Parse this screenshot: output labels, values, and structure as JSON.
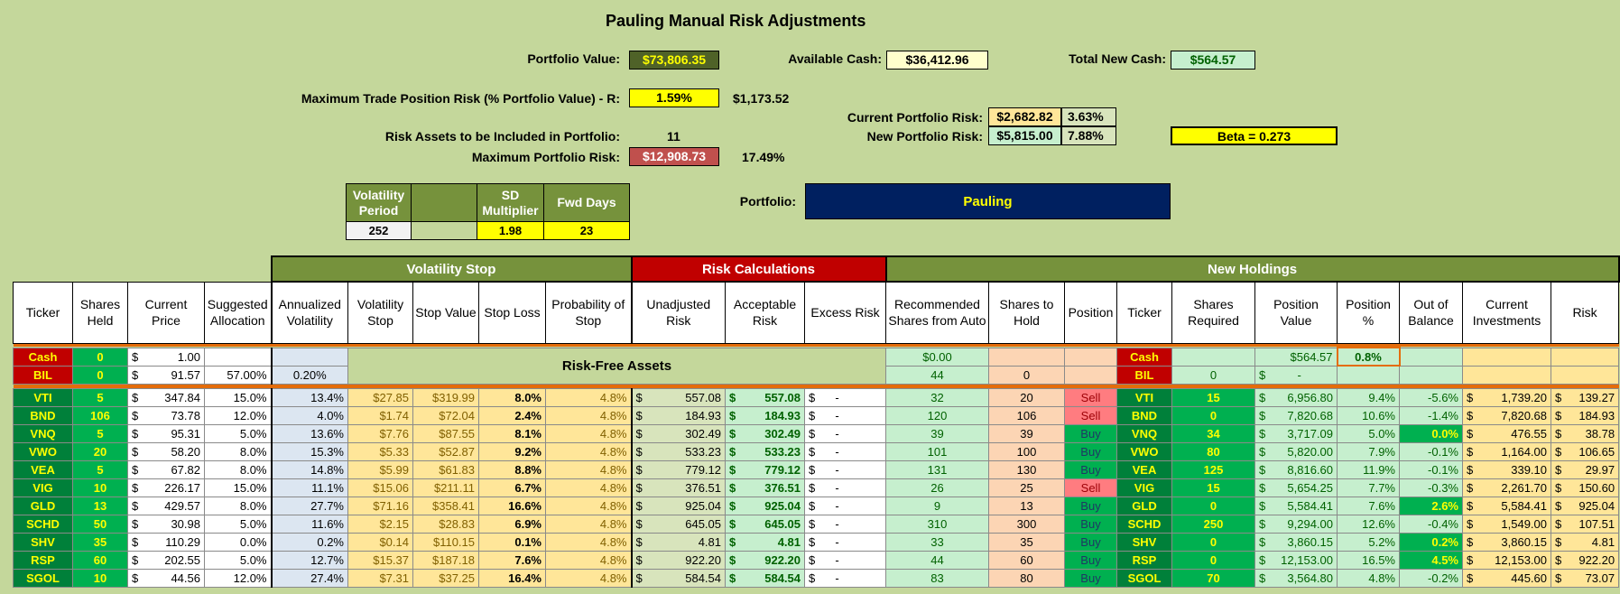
{
  "title": "Pauling Manual Risk Adjustments",
  "summary": {
    "portfolio_value_label": "Portfolio Value:",
    "portfolio_value": "$73,806.35",
    "available_cash_label": "Available Cash:",
    "available_cash": "$36,412.96",
    "total_new_cash_label": "Total New Cash:",
    "total_new_cash": "$564.57",
    "max_trade_risk_label": "Maximum Trade Position Risk (% Portfolio Value) - R:",
    "max_trade_risk_pct": "1.59%",
    "max_trade_risk_amt": "$1,173.52",
    "current_risk_label": "Current Portfolio Risk:",
    "current_risk": "$2,682.82",
    "current_risk_pct": "3.63%",
    "new_risk_label": "New Portfolio Risk:",
    "new_risk": "$5,815.00",
    "new_risk_pct": "7.88%",
    "beta": "Beta = 0.273",
    "risk_assets_label": "Risk Assets to be Included in Portfolio:",
    "risk_assets": "11",
    "max_portfolio_risk_label": "Maximum Portfolio Risk:",
    "max_portfolio_risk": "$12,908.73",
    "max_portfolio_risk_pct": "17.49%",
    "portfolio_label": "Portfolio:",
    "portfolio_name": "Pauling"
  },
  "volatility": {
    "headers": [
      "Volatility Period",
      "",
      "SD Multiplier",
      "Fwd Days"
    ],
    "values": [
      "252",
      "",
      "1.98",
      "23"
    ]
  },
  "sections": {
    "volatility_stop": "Volatility Stop",
    "risk_calculations": "Risk Calculations",
    "new_holdings": "New Holdings"
  },
  "headers": [
    "Ticker",
    "Shares Held",
    "Current Price",
    "Suggested Allocation",
    "Annualized Volatility",
    "Volatility Stop",
    "Stop Value",
    "Stop Loss",
    "Probability of Stop",
    "Unadjusted Risk",
    "Acceptable Risk",
    "Excess Risk",
    "Recommended Shares from Auto",
    "Shares to Hold",
    "Position",
    "Ticker",
    "Shares Required",
    "Position Value",
    "Position %",
    "Out of Balance",
    "Current Investments",
    "Risk"
  ],
  "risk_free_label": "Risk-Free Assets",
  "cash_row": {
    "ticker": "Cash",
    "held": "0",
    "price": "1.00",
    "rec": "$0.00",
    "ticker2": "Cash",
    "posval": "$564.57",
    "pospct": "0.8%"
  },
  "bil_row": {
    "ticker": "BIL",
    "held": "0",
    "price": "91.57",
    "alloc": "57.00%",
    "vol": "0.20%",
    "rec": "44",
    "hold": "0",
    "ticker2": "BIL",
    "req": "0",
    "posval": "-"
  },
  "rows": [
    {
      "t": "VTI",
      "h": "5",
      "p": "347.84",
      "a": "15.0%",
      "v": "13.4%",
      "vs": "$27.85",
      "sv": "$319.99",
      "sl": "8.0%",
      "ps": "4.8%",
      "ur": "557.08",
      "ar": "557.08",
      "er": "-",
      "rec": "32",
      "hold": "20",
      "pos": "Sell",
      "req": "15",
      "pv": "6,956.80",
      "pp": "9.4%",
      "ob": "-5.6%",
      "ci": "1,739.20",
      "rk": "139.27"
    },
    {
      "t": "BND",
      "h": "106",
      "p": "73.78",
      "a": "12.0%",
      "v": "4.0%",
      "vs": "$1.74",
      "sv": "$72.04",
      "sl": "2.4%",
      "ps": "4.8%",
      "ur": "184.93",
      "ar": "184.93",
      "er": "-",
      "rec": "120",
      "hold": "106",
      "pos": "Sell",
      "req": "0",
      "pv": "7,820.68",
      "pp": "10.6%",
      "ob": "-1.4%",
      "ci": "7,820.68",
      "rk": "184.93"
    },
    {
      "t": "VNQ",
      "h": "5",
      "p": "95.31",
      "a": "5.0%",
      "v": "13.6%",
      "vs": "$7.76",
      "sv": "$87.55",
      "sl": "8.1%",
      "ps": "4.8%",
      "ur": "302.49",
      "ar": "302.49",
      "er": "-",
      "rec": "39",
      "hold": "39",
      "pos": "Buy",
      "req": "34",
      "pv": "3,717.09",
      "pp": "5.0%",
      "ob": "0.0%",
      "ci": "476.55",
      "rk": "38.78"
    },
    {
      "t": "VWO",
      "h": "20",
      "p": "58.20",
      "a": "8.0%",
      "v": "15.3%",
      "vs": "$5.33",
      "sv": "$52.87",
      "sl": "9.2%",
      "ps": "4.8%",
      "ur": "533.23",
      "ar": "533.23",
      "er": "-",
      "rec": "101",
      "hold": "100",
      "pos": "Buy",
      "req": "80",
      "pv": "5,820.00",
      "pp": "7.9%",
      "ob": "-0.1%",
      "ci": "1,164.00",
      "rk": "106.65"
    },
    {
      "t": "VEA",
      "h": "5",
      "p": "67.82",
      "a": "8.0%",
      "v": "14.8%",
      "vs": "$5.99",
      "sv": "$61.83",
      "sl": "8.8%",
      "ps": "4.8%",
      "ur": "779.12",
      "ar": "779.12",
      "er": "-",
      "rec": "131",
      "hold": "130",
      "pos": "Buy",
      "req": "125",
      "pv": "8,816.60",
      "pp": "11.9%",
      "ob": "-0.1%",
      "ci": "339.10",
      "rk": "29.97"
    },
    {
      "t": "VIG",
      "h": "10",
      "p": "226.17",
      "a": "15.0%",
      "v": "11.1%",
      "vs": "$15.06",
      "sv": "$211.11",
      "sl": "6.7%",
      "ps": "4.8%",
      "ur": "376.51",
      "ar": "376.51",
      "er": "-",
      "rec": "26",
      "hold": "25",
      "pos": "Sell",
      "req": "15",
      "pv": "5,654.25",
      "pp": "7.7%",
      "ob": "-0.3%",
      "ci": "2,261.70",
      "rk": "150.60"
    },
    {
      "t": "GLD",
      "h": "13",
      "p": "429.57",
      "a": "8.0%",
      "v": "27.7%",
      "vs": "$71.16",
      "sv": "$358.41",
      "sl": "16.6%",
      "ps": "4.8%",
      "ur": "925.04",
      "ar": "925.04",
      "er": "-",
      "rec": "9",
      "hold": "13",
      "pos": "Buy",
      "req": "0",
      "pv": "5,584.41",
      "pp": "7.6%",
      "ob": "2.6%",
      "ci": "5,584.41",
      "rk": "925.04"
    },
    {
      "t": "SCHD",
      "h": "50",
      "p": "30.98",
      "a": "5.0%",
      "v": "11.6%",
      "vs": "$2.15",
      "sv": "$28.83",
      "sl": "6.9%",
      "ps": "4.8%",
      "ur": "645.05",
      "ar": "645.05",
      "er": "-",
      "rec": "310",
      "hold": "300",
      "pos": "Buy",
      "req": "250",
      "pv": "9,294.00",
      "pp": "12.6%",
      "ob": "-0.4%",
      "ci": "1,549.00",
      "rk": "107.51"
    },
    {
      "t": "SHV",
      "h": "35",
      "p": "110.29",
      "a": "0.0%",
      "v": "0.2%",
      "vs": "$0.14",
      "sv": "$110.15",
      "sl": "0.1%",
      "ps": "4.8%",
      "ur": "4.81",
      "ar": "4.81",
      "er": "-",
      "rec": "33",
      "hold": "35",
      "pos": "Buy",
      "req": "0",
      "pv": "3,860.15",
      "pp": "5.2%",
      "ob": "0.2%",
      "ci": "3,860.15",
      "rk": "4.81"
    },
    {
      "t": "RSP",
      "h": "60",
      "p": "202.55",
      "a": "5.0%",
      "v": "12.7%",
      "vs": "$15.37",
      "sv": "$187.18",
      "sl": "7.6%",
      "ps": "4.8%",
      "ur": "922.20",
      "ar": "922.20",
      "er": "-",
      "rec": "44",
      "hold": "60",
      "pos": "Buy",
      "req": "0",
      "pv": "12,153.00",
      "pp": "16.5%",
      "ob": "4.5%",
      "ci": "12,153.00",
      "rk": "922.20"
    },
    {
      "t": "SGOL",
      "h": "10",
      "p": "44.56",
      "a": "12.0%",
      "v": "27.4%",
      "vs": "$7.31",
      "sv": "$37.25",
      "sl": "16.4%",
      "ps": "4.8%",
      "ur": "584.54",
      "ar": "584.54",
      "er": "-",
      "rec": "83",
      "hold": "80",
      "pos": "Buy",
      "req": "70",
      "pv": "3,564.80",
      "pp": "4.8%",
      "ob": "-0.2%",
      "ci": "445.60",
      "rk": "73.07"
    }
  ],
  "colors": {
    "background": "#c4d79b",
    "olive_header": "#76923c",
    "red_header": "#c00000",
    "navy": "#002060",
    "yellow": "#ffff00"
  }
}
